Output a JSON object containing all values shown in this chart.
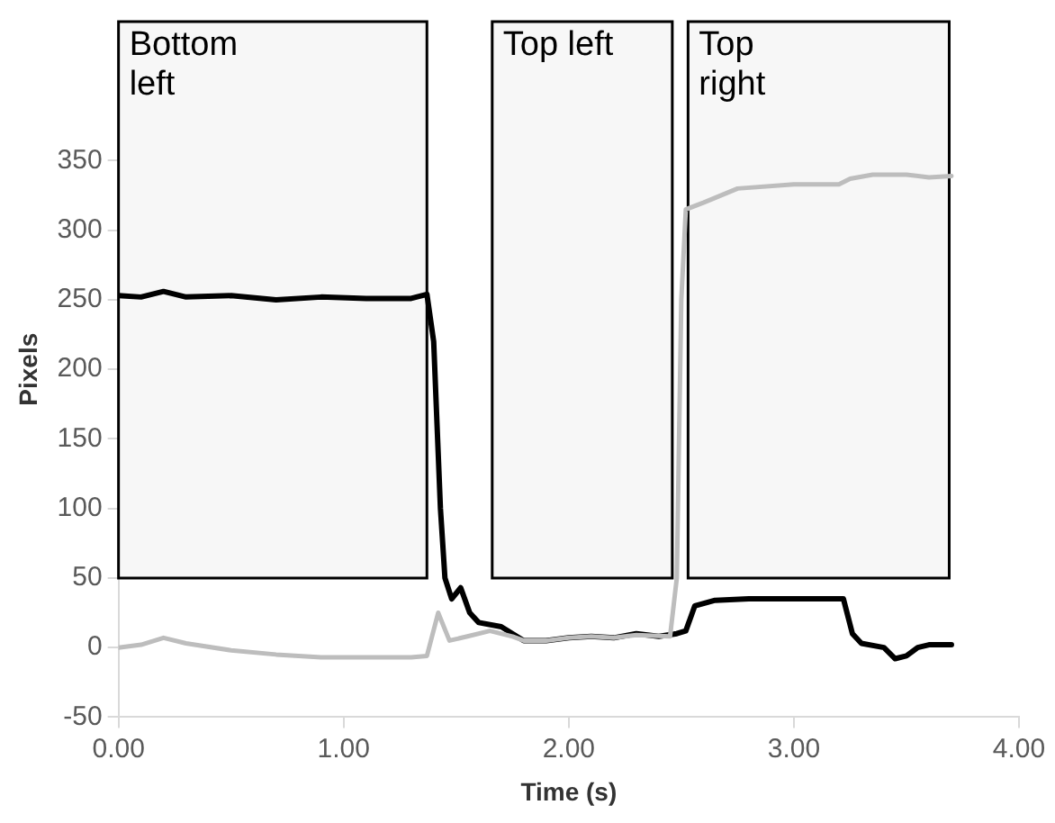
{
  "chart_data": {
    "type": "line",
    "xlabel": "Time (s)",
    "ylabel": "Pixels",
    "xlim": [
      0,
      4
    ],
    "xticks": [
      {
        "value": 0,
        "label": "0.00"
      },
      {
        "value": 1,
        "label": "1.00"
      },
      {
        "value": 2,
        "label": "2.00"
      },
      {
        "value": 3,
        "label": "3.00"
      },
      {
        "value": 4,
        "label": "4.00"
      }
    ],
    "ylim": [
      -50,
      450
    ],
    "yticks": [
      -50,
      0,
      50,
      100,
      150,
      200,
      250,
      300,
      350
    ],
    "grid": false,
    "legend": false,
    "marker": "none",
    "line_style": "solid",
    "bands": [
      {
        "axis": "x",
        "from": 0,
        "to": 1.37,
        "label": "Bottom\nleft",
        "color": "#f7f7f7"
      },
      {
        "axis": "x",
        "from": 1.66,
        "to": 2.46,
        "label": "Top left",
        "color": "#f7f7f7"
      },
      {
        "axis": "x",
        "from": 2.53,
        "to": 3.69,
        "label": "Top\nright",
        "color": "#f7f7f7"
      }
    ],
    "series": [
      {
        "color": "#bdbdbd",
        "x": [
          0,
          0.1,
          0.2,
          0.3,
          0.5,
          0.7,
          0.9,
          1.1,
          1.3,
          1.37,
          1.42,
          1.47,
          1.55,
          1.65,
          1.75,
          1.8,
          1.9,
          2.0,
          2.1,
          2.2,
          2.3,
          2.45,
          2.48,
          2.5,
          2.52,
          2.6,
          2.75,
          3.0,
          3.2,
          3.25,
          3.35,
          3.5,
          3.6,
          3.7
        ],
        "values": [
          0,
          2,
          7,
          3,
          -2,
          -5,
          -7,
          -7,
          -7,
          -6,
          25,
          5,
          8,
          12,
          8,
          5,
          5,
          7,
          8,
          7,
          9,
          8,
          50,
          250,
          315,
          320,
          330,
          333,
          333,
          337,
          340,
          340,
          338,
          339
        ]
      },
      {
        "color": "#000000",
        "x": [
          0,
          0.1,
          0.2,
          0.3,
          0.5,
          0.7,
          0.9,
          1.1,
          1.3,
          1.37,
          1.4,
          1.43,
          1.45,
          1.48,
          1.52,
          1.56,
          1.6,
          1.7,
          1.75,
          1.8,
          1.9,
          2.0,
          2.1,
          2.2,
          2.3,
          2.4,
          2.48,
          2.52,
          2.56,
          2.65,
          2.8,
          3.0,
          3.2,
          3.22,
          3.26,
          3.3,
          3.4,
          3.45,
          3.5,
          3.55,
          3.6,
          3.7
        ],
        "values": [
          253,
          252,
          256,
          252,
          253,
          250,
          252,
          251,
          251,
          254,
          220,
          100,
          50,
          35,
          43,
          25,
          18,
          15,
          10,
          5,
          5,
          7,
          8,
          7,
          10,
          8,
          10,
          12,
          30,
          34,
          35,
          35,
          35,
          35,
          10,
          3,
          0,
          -8,
          -6,
          0,
          2,
          2
        ]
      }
    ]
  }
}
